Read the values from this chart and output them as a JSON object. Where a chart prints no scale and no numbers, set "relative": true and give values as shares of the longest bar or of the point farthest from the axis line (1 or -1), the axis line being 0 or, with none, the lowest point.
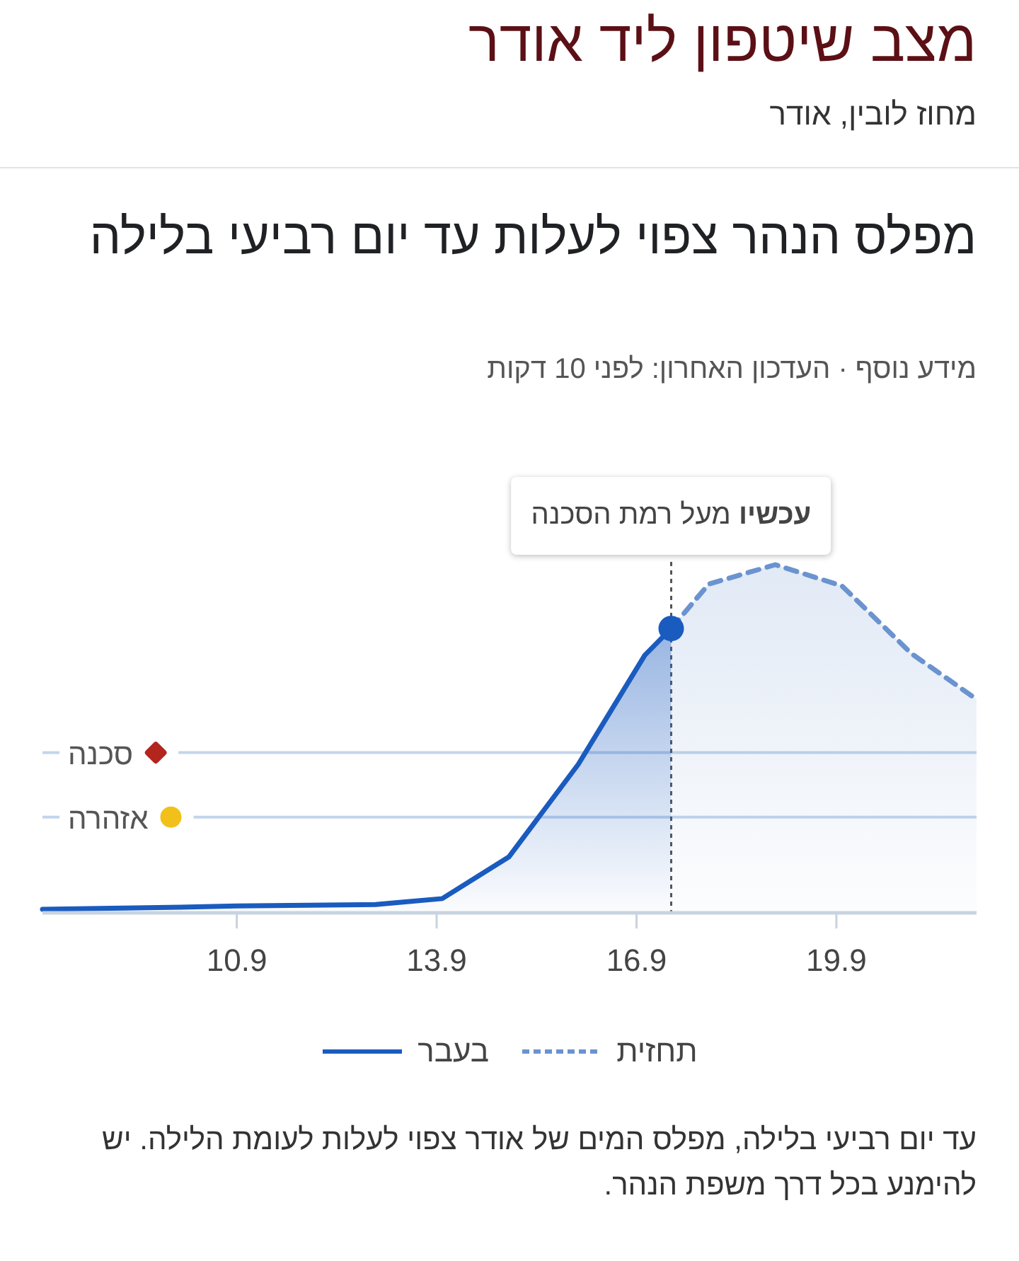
{
  "chart_data": {
    "type": "area",
    "title": "מצב שיטפון ליד אודר",
    "subtitle": "מחוז לובין, אודר",
    "relative": true,
    "xlim": [
      "--09-07T02:00",
      "--09-21T02:30"
    ],
    "xticks": [
      {
        "value": "--09-10",
        "label": "10.9"
      },
      {
        "value": "--09-13",
        "label": "13.9"
      },
      {
        "value": "--09-16",
        "label": "16.9"
      },
      {
        "value": "--09-19",
        "label": "19.9"
      }
    ],
    "series": [
      {
        "name": "בעבר",
        "color": "#1a5bbf",
        "line_style": "solid",
        "x": [
          "--09-07T02:00",
          "--09-09T04:00",
          "--09-10",
          "--09-12T02:00",
          "--09-13T02:00",
          "--09-14T02:00",
          "--09-15T03:00",
          "--09-16T03:00",
          "--09-16T12:30"
        ],
        "values": [
          0.006,
          0.012,
          0.016,
          0.02,
          0.037,
          0.157,
          0.424,
          0.739,
          0.816
        ]
      },
      {
        "name": "תחזית",
        "color": "#6a93cf",
        "line_style": "dashed",
        "x": [
          "--09-16T12:30",
          "--09-17T02:00",
          "--09-18T02:00",
          "--09-19T02:00",
          "--09-20T03:00",
          "--09-21T02:30"
        ],
        "values": [
          0.816,
          0.944,
          1.0,
          0.939,
          0.744,
          0.612
        ]
      }
    ],
    "ref_lines": [
      {
        "axis": "y",
        "value": 0.458,
        "label": "סכנה",
        "color": "#c3d5ec"
      },
      {
        "axis": "y",
        "value": 0.272,
        "label": "אזהרה",
        "color": "#c3d5ec"
      },
      {
        "axis": "x",
        "value": "--09-16T12:30",
        "color": "#555555",
        "line_style": "dotted"
      }
    ],
    "annotations": [
      "מפלס הנהר צפוי לעלות עד יום רביעי בלילה",
      "מידע נוסף · העדכון האחרון: לפני 10 דקות",
      "**עכשיו** מעל רמת הסכנה",
      "עד יום רביעי בלילה, מפלס המים של אודר צפוי לעלות לעומת הלילה. יש להימנע בכל דרך משפת הנהר."
    ],
    "legend": "bottom"
  }
}
